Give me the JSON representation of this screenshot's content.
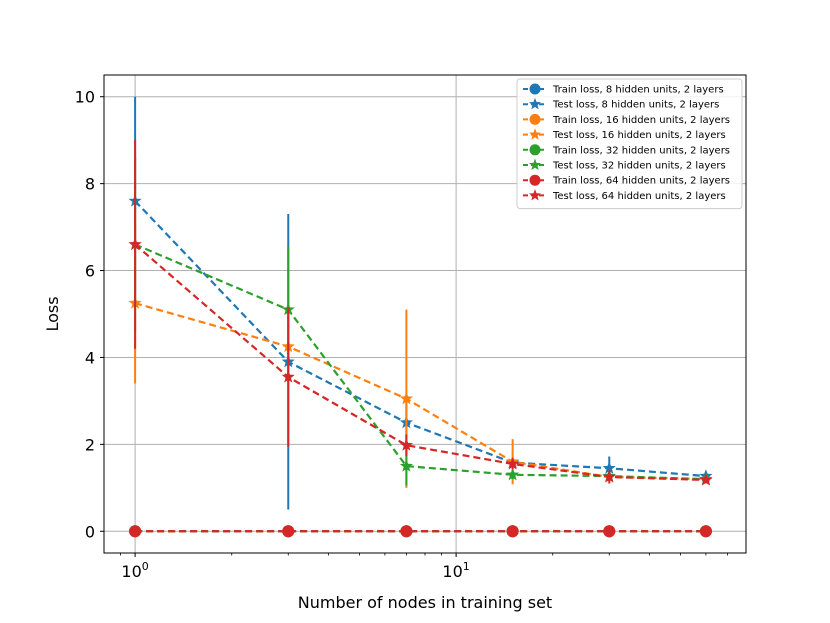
{
  "chart_data": {
    "type": "line",
    "title": "",
    "xlabel": "Number of nodes in training set",
    "ylabel": "Loss",
    "xscale": "log",
    "xlim": [
      0.8,
      80
    ],
    "ylim": [
      -0.5,
      10.5
    ],
    "grid": true,
    "legend_position": "top-right",
    "x": [
      1,
      3,
      7,
      15,
      30,
      60
    ],
    "yticks": [
      0,
      2,
      4,
      6,
      8,
      10
    ],
    "xticks": [
      {
        "value": 1,
        "base": "10",
        "exp": "0"
      },
      {
        "value": 10,
        "base": "10",
        "exp": "1"
      }
    ],
    "series": [
      {
        "name": "Train loss, 8 hidden units, 2 layers",
        "color": "#1f77b4",
        "marker": "circle",
        "values": [
          0,
          0,
          0,
          0,
          0,
          0
        ],
        "errors": [
          0,
          0,
          0,
          0,
          0,
          0
        ]
      },
      {
        "name": "Test loss, 8 hidden units, 2 layers",
        "color": "#1f77b4",
        "marker": "star",
        "values": [
          7.6,
          3.9,
          2.5,
          1.58,
          1.45,
          1.27
        ],
        "errors": [
          2.4,
          3.4,
          0.5,
          0.1,
          0.27,
          0.05
        ]
      },
      {
        "name": "Train loss, 16 hidden units, 2 layers",
        "color": "#ff7f0e",
        "marker": "circle",
        "values": [
          0,
          0,
          0,
          0,
          0,
          0
        ],
        "errors": [
          0,
          0,
          0,
          0,
          0,
          0
        ]
      },
      {
        "name": "Test loss, 16 hidden units, 2 layers",
        "color": "#ff7f0e",
        "marker": "star",
        "values": [
          5.25,
          4.25,
          3.05,
          1.6,
          1.25,
          1.2
        ],
        "errors": [
          1.85,
          0.2,
          2.05,
          0.52,
          0.1,
          0.05
        ]
      },
      {
        "name": "Train loss, 32 hidden units, 2 layers",
        "color": "#2ca02c",
        "marker": "circle",
        "values": [
          0,
          0,
          0,
          0,
          0,
          0
        ],
        "errors": [
          0,
          0,
          0,
          0,
          0,
          0
        ]
      },
      {
        "name": "Test loss, 32 hidden units, 2 layers",
        "color": "#2ca02c",
        "marker": "star",
        "values": [
          6.6,
          5.1,
          1.5,
          1.3,
          1.27,
          1.2
        ],
        "errors": [
          2.0,
          1.45,
          0.45,
          0.1,
          0.1,
          0.05
        ]
      },
      {
        "name": "Train loss, 64 hidden units, 2 layers",
        "color": "#d62728",
        "marker": "circle",
        "values": [
          0,
          0,
          0,
          0,
          0,
          0
        ],
        "errors": [
          0,
          0,
          0,
          0,
          0,
          0
        ]
      },
      {
        "name": "Test loss, 64 hidden units, 2 layers",
        "color": "#d62728",
        "marker": "star",
        "values": [
          6.6,
          3.55,
          1.98,
          1.55,
          1.25,
          1.18
        ],
        "errors": [
          2.4,
          1.6,
          0.25,
          0.12,
          0.15,
          0.08
        ]
      }
    ]
  }
}
